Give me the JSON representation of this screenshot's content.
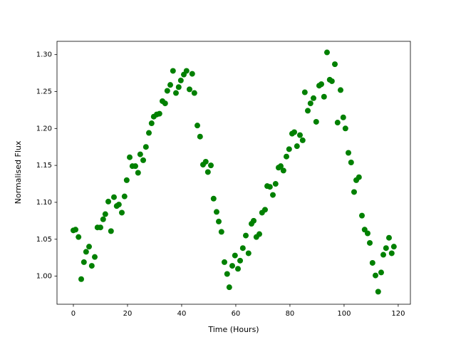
{
  "chart_data": {
    "type": "scatter",
    "x_label": "Time (Hours)",
    "y_label": "Normalised Flux",
    "series": [
      {
        "color": "#008000",
        "x": [
          0,
          0.8,
          1.9,
          2.9,
          3.9,
          4.7,
          5.8,
          6.8,
          7.9,
          8.9,
          10,
          11,
          11.8,
          12.9,
          13.9,
          15,
          16,
          16.8,
          17.9,
          18.9,
          19.7,
          20.8,
          21.8,
          22.9,
          23.9,
          24.7,
          25.8,
          26.8,
          27.9,
          28.9,
          29.7,
          30.8,
          31.8,
          32.9,
          33.9,
          34.7,
          35.8,
          36.8,
          37.9,
          38.9,
          39.7,
          40.8,
          41.8,
          42.9,
          43.9,
          44.7,
          45.8,
          46.8,
          47.9,
          48.9,
          49.7,
          50.8,
          51.8,
          52.9,
          53.7,
          54.7,
          55.8,
          56.8,
          57.6,
          58.7,
          59.7,
          60.8,
          61.6,
          62.6,
          63.7,
          64.7,
          65.8,
          66.6,
          67.6,
          68.7,
          69.7,
          70.8,
          71.6,
          72.6,
          73.7,
          74.7,
          75.8,
          76.6,
          77.6,
          78.7,
          79.7,
          80.8,
          81.6,
          82.6,
          83.7,
          84.7,
          85.5,
          86.6,
          87.6,
          88.7,
          89.7,
          90.8,
          91.6,
          92.6,
          93.7,
          94.7,
          95.5,
          96.6,
          97.6,
          98.7,
          99.7,
          100.5,
          101.6,
          102.6,
          103.7,
          104.5,
          105.5,
          106.6,
          107.6,
          108.7,
          109.5,
          110.5,
          111.6,
          112.6,
          113.7,
          114.5,
          115.5,
          116.6,
          117.6,
          118.4
        ],
        "values": [
          1.062,
          1.063,
          1.053,
          0.996,
          1.019,
          1.033,
          1.04,
          1.014,
          1.026,
          1.066,
          1.066,
          1.077,
          1.084,
          1.101,
          1.061,
          1.107,
          1.095,
          1.097,
          1.086,
          1.108,
          1.13,
          1.161,
          1.149,
          1.149,
          1.14,
          1.165,
          1.157,
          1.175,
          1.194,
          1.207,
          1.216,
          1.219,
          1.22,
          1.237,
          1.234,
          1.251,
          1.259,
          1.278,
          1.248,
          1.256,
          1.265,
          1.273,
          1.278,
          1.253,
          1.274,
          1.248,
          1.204,
          1.189,
          1.151,
          1.155,
          1.141,
          1.15,
          1.105,
          1.087,
          1.074,
          1.06,
          1.019,
          1.003,
          0.985,
          1.014,
          1.028,
          1.01,
          1.021,
          1.038,
          1.055,
          1.031,
          1.071,
          1.075,
          1.053,
          1.057,
          1.086,
          1.09,
          1.122,
          1.121,
          1.11,
          1.125,
          1.147,
          1.149,
          1.143,
          1.162,
          1.172,
          1.193,
          1.195,
          1.176,
          1.191,
          1.184,
          1.249,
          1.224,
          1.234,
          1.241,
          1.209,
          1.258,
          1.26,
          1.243,
          1.303,
          1.266,
          1.264,
          1.287,
          1.208,
          1.252,
          1.215,
          1.2,
          1.167,
          1.154,
          1.114,
          1.13,
          1.134,
          1.082,
          1.063,
          1.058,
          1.045,
          1.018,
          1.001,
          0.979,
          1.005,
          1.029,
          1.038,
          1.052,
          1.031,
          1.04
        ]
      }
    ],
    "xlim": [
      -6.05,
      124.5
    ],
    "xticks": [
      0,
      20,
      40,
      60,
      80,
      100,
      120
    ],
    "ylim": [
      0.962,
      1.318
    ],
    "yticks": [
      {
        "value": 1,
        "label": "1.00"
      },
      {
        "value": 1.05,
        "label": "1.05"
      },
      {
        "value": 1.1,
        "label": "1.10"
      },
      {
        "value": 1.15,
        "label": "1.15"
      },
      {
        "value": 1.2,
        "label": "1.20"
      },
      {
        "value": 1.25,
        "label": "1.25"
      },
      {
        "value": 1.3,
        "label": "1.30"
      }
    ],
    "grid": false
  }
}
